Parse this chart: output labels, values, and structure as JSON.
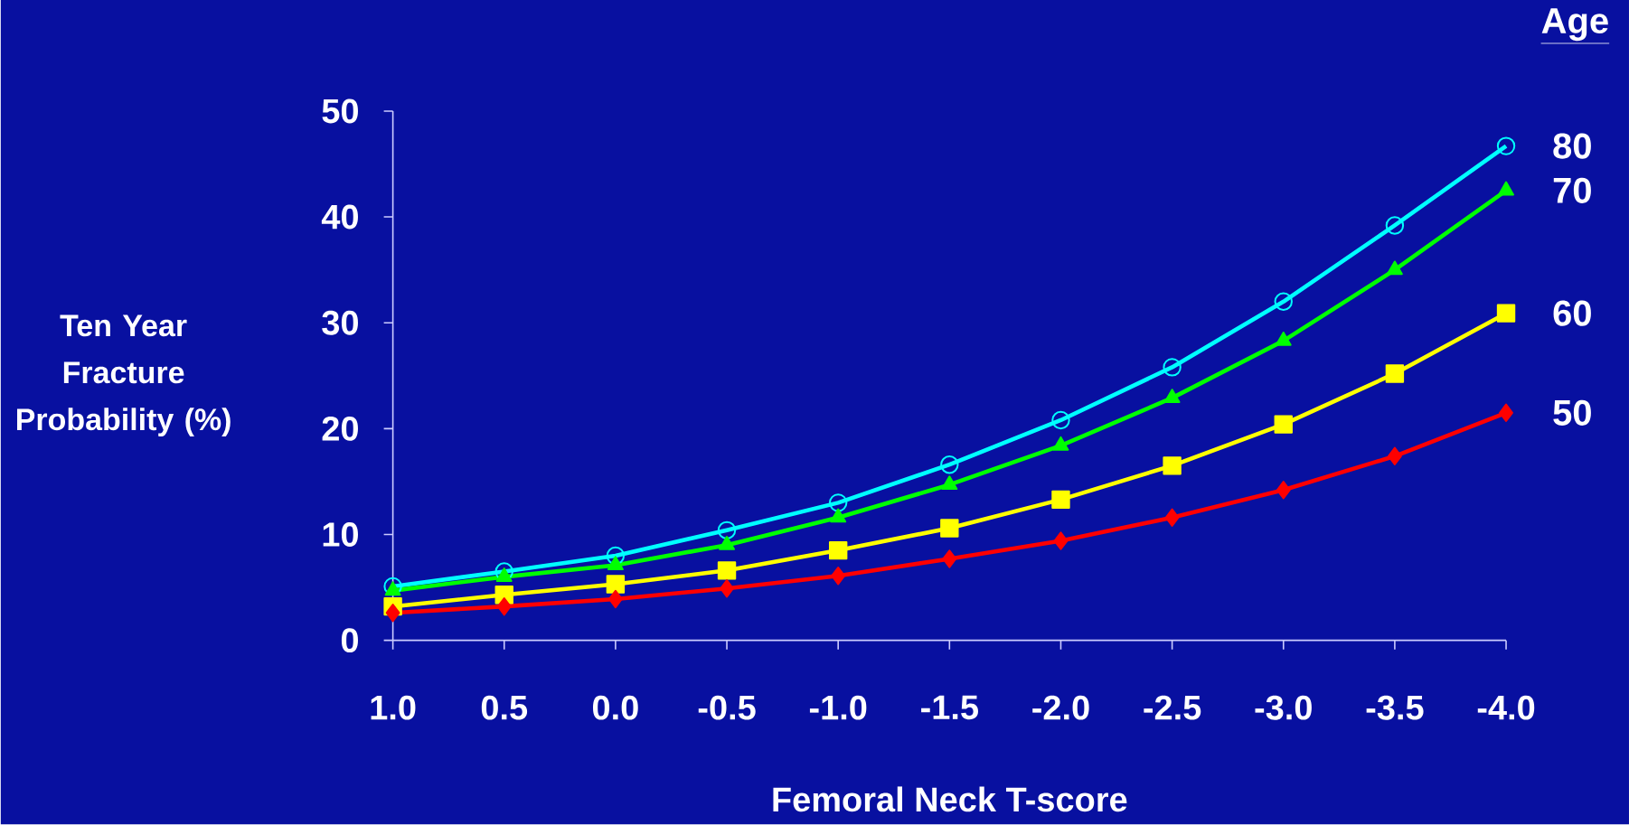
{
  "chart_data": {
    "type": "line",
    "xlabel": "Femoral Neck T-score",
    "ylabel": "Ten Year Fracture Probability (%)",
    "legend_title": "Age",
    "x": [
      1.0,
      0.5,
      0.0,
      -0.5,
      -1.0,
      -1.5,
      -2.0,
      -2.5,
      -3.0,
      -3.5,
      -4.0
    ],
    "xlim": [
      1.0,
      -4.0
    ],
    "xticks": [
      {
        "value": 1.0,
        "label": "1.0"
      },
      {
        "value": 0.5,
        "label": "0.5"
      },
      {
        "value": 0.0,
        "label": "0.0"
      },
      {
        "value": -0.5,
        "label": "-0.5"
      },
      {
        "value": -1.0,
        "label": "-1.0"
      },
      {
        "value": -1.5,
        "label": "-1.5"
      },
      {
        "value": -2.0,
        "label": "-2.0"
      },
      {
        "value": -2.5,
        "label": "-2.5"
      },
      {
        "value": -3.0,
        "label": "-3.0"
      },
      {
        "value": -3.5,
        "label": "-3.5"
      },
      {
        "value": -4.0,
        "label": "-4.0"
      }
    ],
    "ylim": [
      0,
      50
    ],
    "yticks": [
      0,
      10,
      20,
      30,
      40,
      50
    ],
    "series": [
      {
        "name": "80",
        "color": "#00ffff",
        "marker": "circle",
        "values": [
          5.1,
          6.5,
          8.0,
          10.4,
          13.0,
          16.6,
          20.8,
          25.8,
          32.0,
          39.2,
          46.7
        ]
      },
      {
        "name": "70",
        "color": "#00ff00",
        "marker": "triangle",
        "values": [
          4.7,
          6.0,
          7.1,
          9.0,
          11.6,
          14.7,
          18.4,
          22.9,
          28.3,
          35.0,
          42.5
        ]
      },
      {
        "name": "60",
        "color": "#ffff00",
        "marker": "square",
        "values": [
          3.2,
          4.3,
          5.3,
          6.6,
          8.5,
          10.6,
          13.3,
          16.5,
          20.4,
          25.2,
          30.9
        ]
      },
      {
        "name": "50",
        "color": "#ff0000",
        "marker": "diamond",
        "values": [
          2.6,
          3.2,
          3.9,
          4.9,
          6.1,
          7.7,
          9.4,
          11.6,
          14.2,
          17.4,
          21.5
        ]
      }
    ],
    "line_style": "solid"
  }
}
